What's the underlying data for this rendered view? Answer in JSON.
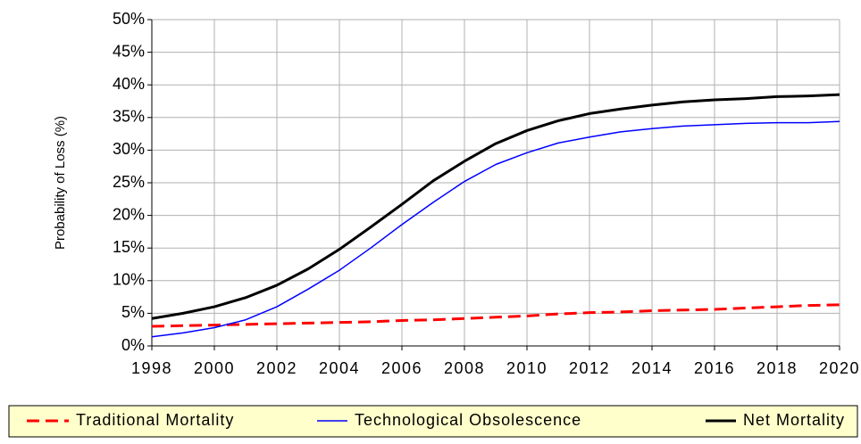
{
  "chart_data": {
    "type": "line",
    "y_axis_label": "Probability of Loss (%)",
    "x": [
      1998,
      1999,
      2000,
      2001,
      2002,
      2003,
      2004,
      2005,
      2006,
      2007,
      2008,
      2009,
      2010,
      2011,
      2012,
      2013,
      2014,
      2015,
      2016,
      2017,
      2018,
      2019,
      2020
    ],
    "series": [
      {
        "name": "Traditional Mortality",
        "color": "#ff0000",
        "dash": true,
        "width": 3,
        "values": [
          3.0,
          3.1,
          3.2,
          3.3,
          3.4,
          3.5,
          3.6,
          3.7,
          3.9,
          4.0,
          4.2,
          4.4,
          4.6,
          4.9,
          5.1,
          5.2,
          5.4,
          5.5,
          5.6,
          5.8,
          6.0,
          6.2,
          6.3
        ]
      },
      {
        "name": "Technological Obsolescence",
        "color": "#0000ff",
        "dash": false,
        "width": 1.5,
        "values": [
          1.4,
          2.0,
          2.8,
          4.0,
          6.0,
          8.7,
          11.6,
          15.0,
          18.6,
          22.0,
          25.2,
          27.8,
          29.6,
          31.1,
          32.0,
          32.8,
          33.3,
          33.7,
          33.9,
          34.1,
          34.2,
          34.2,
          34.4
        ]
      },
      {
        "name": "Net Mortality",
        "color": "#000000",
        "dash": false,
        "width": 3,
        "values": [
          4.2,
          5.0,
          6.0,
          7.4,
          9.3,
          11.8,
          14.8,
          18.2,
          21.7,
          25.3,
          28.3,
          31.0,
          33.0,
          34.5,
          35.6,
          36.3,
          36.9,
          37.4,
          37.7,
          37.9,
          38.2,
          38.3,
          38.5
        ]
      }
    ],
    "xlim": [
      1998,
      2020
    ],
    "xticks": [
      1998,
      2000,
      2002,
      2004,
      2006,
      2008,
      2010,
      2012,
      2014,
      2016,
      2018,
      2020
    ],
    "ylim": [
      0,
      50
    ],
    "yticks": [
      {
        "value": 0,
        "label": "0%"
      },
      {
        "value": 5,
        "label": "5%"
      },
      {
        "value": 10,
        "label": "10%"
      },
      {
        "value": 15,
        "label": "15%"
      },
      {
        "value": 20,
        "label": "20%"
      },
      {
        "value": 25,
        "label": "25%"
      },
      {
        "value": 30,
        "label": "30%"
      },
      {
        "value": 35,
        "label": "35%"
      },
      {
        "value": 40,
        "label": "40%"
      },
      {
        "value": 45,
        "label": "45%"
      },
      {
        "value": 50,
        "label": "50%"
      }
    ],
    "grid": true,
    "legend": "bottom"
  }
}
